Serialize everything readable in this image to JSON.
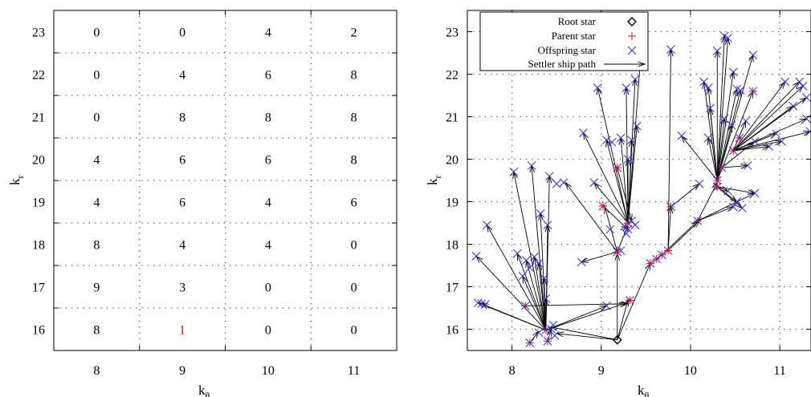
{
  "colors": {
    "axis": "#000000",
    "grid": "#555555",
    "highlight_text": "#ff0000",
    "root": "#000000",
    "parent": "#ff0000",
    "offspring": "#2a2ae0",
    "path": "#000000"
  },
  "chart_data": [
    {
      "type": "table",
      "xlabel": "k",
      "xlabel_sub": "θ",
      "ylabel": "k",
      "ylabel_sub": "r",
      "x_ticks": [
        "8",
        "9",
        "10",
        "11"
      ],
      "y_ticks": [
        "23",
        "22",
        "21",
        "20",
        "19",
        "18",
        "17",
        "16"
      ],
      "grid": true,
      "cells": [
        [
          "0",
          "0",
          "4",
          "2"
        ],
        [
          "0",
          "4",
          "6",
          "8"
        ],
        [
          "0",
          "8",
          "8",
          "8"
        ],
        [
          "4",
          "6",
          "6",
          "8"
        ],
        [
          "4",
          "6",
          "4",
          "6"
        ],
        [
          "8",
          "4",
          "4",
          "0"
        ],
        [
          "9",
          "3",
          "0",
          "0"
        ],
        [
          "8",
          "1",
          "0",
          "0"
        ]
      ],
      "highlight_cell": {
        "row": 7,
        "col": 1
      }
    },
    {
      "type": "scatter",
      "xlabel": "k",
      "xlabel_sub": "θ",
      "ylabel": "k",
      "ylabel_sub": "r",
      "xlim": [
        7.5,
        11.35
      ],
      "ylim": [
        15.5,
        23.5
      ],
      "x_ticks": [
        8,
        9,
        10,
        11
      ],
      "y_ticks": [
        16,
        17,
        18,
        19,
        20,
        21,
        22,
        23
      ],
      "grid": true,
      "legend_position": "top-left",
      "legend": [
        {
          "label": "Root star",
          "marker": "diamond"
        },
        {
          "label": "Parent star",
          "marker": "plus"
        },
        {
          "label": "Offspring star",
          "marker": "cross"
        },
        {
          "label": "Settler ship path",
          "marker": "arrow"
        }
      ],
      "root": [
        9.18,
        15.75
      ],
      "parents": [
        [
          8.38,
          15.98
        ],
        [
          9.18,
          17.82
        ],
        [
          9.3,
          18.5
        ],
        [
          9.78,
          18.88
        ],
        [
          10.48,
          20.2
        ],
        [
          9.02,
          18.9
        ],
        [
          9.18,
          19.8
        ],
        [
          9.75,
          17.85
        ],
        [
          10.08,
          18.55
        ],
        [
          10.3,
          19.5
        ],
        [
          9.32,
          16.68
        ],
        [
          8.2,
          15.68
        ],
        [
          8.4,
          15.72
        ],
        [
          8.15,
          16.55
        ],
        [
          10.7,
          21.6
        ],
        [
          10.55,
          20.5
        ],
        [
          10.35,
          19.8
        ],
        [
          10.3,
          19.35
        ],
        [
          9.55,
          17.55
        ],
        [
          9.62,
          17.65
        ],
        [
          9.68,
          17.75
        ]
      ],
      "offspring": [
        [
          7.6,
          17.72
        ],
        [
          7.62,
          16.62
        ],
        [
          7.66,
          16.6
        ],
        [
          7.7,
          16.58
        ],
        [
          7.72,
          18.45
        ],
        [
          8.02,
          19.7
        ],
        [
          8.06,
          17.78
        ],
        [
          8.12,
          17.25
        ],
        [
          8.16,
          17.62
        ],
        [
          8.2,
          17.45
        ],
        [
          8.22,
          19.85
        ],
        [
          8.25,
          17.7
        ],
        [
          8.3,
          17.55
        ],
        [
          8.32,
          18.72
        ],
        [
          8.36,
          17.2
        ],
        [
          8.38,
          16.72
        ],
        [
          8.4,
          18.45
        ],
        [
          8.42,
          19.6
        ],
        [
          8.3,
          15.92
        ],
        [
          8.44,
          16.0
        ],
        [
          8.48,
          15.85
        ],
        [
          8.46,
          16.1
        ],
        [
          8.58,
          19.45
        ],
        [
          8.78,
          17.58
        ],
        [
          8.8,
          20.62
        ],
        [
          8.92,
          19.45
        ],
        [
          8.96,
          21.68
        ],
        [
          9.06,
          20.45
        ],
        [
          9.12,
          20.4
        ],
        [
          9.22,
          20.5
        ],
        [
          9.28,
          21.68
        ],
        [
          9.34,
          20.45
        ],
        [
          9.38,
          21.88
        ],
        [
          9.44,
          22.35
        ],
        [
          9.4,
          20.78
        ],
        [
          9.26,
          18.42
        ],
        [
          9.3,
          18.35
        ],
        [
          9.34,
          18.55
        ],
        [
          9.38,
          18.45
        ],
        [
          9.28,
          18.25
        ],
        [
          9.3,
          20.0
        ],
        [
          9.06,
          16.55
        ],
        [
          9.22,
          17.85
        ],
        [
          9.78,
          22.58
        ],
        [
          9.9,
          20.55
        ],
        [
          10.15,
          21.82
        ],
        [
          10.2,
          21.68
        ],
        [
          10.2,
          20.5
        ],
        [
          10.22,
          21.2
        ],
        [
          10.3,
          22.55
        ],
        [
          10.38,
          22.9
        ],
        [
          10.42,
          22.85
        ],
        [
          10.38,
          20.95
        ],
        [
          10.46,
          20.8
        ],
        [
          10.48,
          22.05
        ],
        [
          10.52,
          21.65
        ],
        [
          10.56,
          21.62
        ],
        [
          10.62,
          20.9
        ],
        [
          10.7,
          22.45
        ],
        [
          10.72,
          20.42
        ],
        [
          10.88,
          20.3
        ],
        [
          10.96,
          20.6
        ],
        [
          11.06,
          21.82
        ],
        [
          11.15,
          21.25
        ],
        [
          11.22,
          21.82
        ],
        [
          11.26,
          21.72
        ],
        [
          11.3,
          21.45
        ],
        [
          11.3,
          20.95
        ],
        [
          11.34,
          20.65
        ],
        [
          11.02,
          20.42
        ],
        [
          10.64,
          19.85
        ],
        [
          10.52,
          19.0
        ],
        [
          10.58,
          18.85
        ],
        [
          10.48,
          18.88
        ],
        [
          10.42,
          19.25
        ],
        [
          10.72,
          19.2
        ],
        [
          9.1,
          18.35
        ],
        [
          8.5,
          19.42
        ],
        [
          9.78,
          18.88
        ],
        [
          10.1,
          19.42
        ]
      ],
      "paths": [
        [
          9.18,
          15.75,
          8.44,
          16.05
        ],
        [
          9.18,
          15.75,
          9.3,
          16.7
        ],
        [
          9.18,
          15.75,
          8.5,
          15.9
        ],
        [
          9.18,
          15.75,
          9.18,
          17.78
        ],
        [
          8.38,
          15.98,
          7.62,
          16.62
        ],
        [
          8.38,
          15.98,
          7.66,
          16.6
        ],
        [
          8.38,
          15.98,
          7.6,
          17.72
        ],
        [
          8.38,
          15.98,
          7.72,
          18.45
        ],
        [
          8.38,
          15.98,
          8.02,
          19.7
        ],
        [
          8.38,
          15.98,
          8.22,
          19.85
        ],
        [
          8.38,
          15.98,
          8.06,
          17.78
        ],
        [
          8.38,
          15.98,
          8.12,
          17.25
        ],
        [
          8.38,
          15.98,
          8.16,
          17.62
        ],
        [
          8.38,
          15.98,
          8.25,
          17.7
        ],
        [
          8.38,
          15.98,
          8.3,
          17.55
        ],
        [
          8.38,
          15.98,
          8.32,
          18.72
        ],
        [
          8.38,
          15.98,
          8.36,
          17.2
        ],
        [
          8.38,
          15.98,
          8.4,
          18.45
        ],
        [
          8.38,
          15.98,
          8.42,
          19.6
        ],
        [
          8.38,
          15.98,
          8.38,
          16.72
        ],
        [
          8.38,
          15.98,
          9.06,
          16.55
        ],
        [
          8.38,
          15.98,
          9.28,
          16.62
        ],
        [
          8.15,
          16.55,
          9.3,
          16.6
        ],
        [
          8.2,
          15.68,
          8.3,
          15.95
        ],
        [
          8.4,
          15.72,
          8.44,
          16.0
        ],
        [
          9.18,
          17.82,
          8.78,
          17.58
        ],
        [
          9.18,
          17.82,
          9.3,
          18.45
        ],
        [
          9.18,
          17.82,
          8.6,
          19.45
        ],
        [
          9.18,
          17.82,
          9.04,
          18.88
        ],
        [
          9.3,
          18.5,
          8.8,
          20.62
        ],
        [
          9.3,
          18.5,
          8.92,
          19.45
        ],
        [
          9.3,
          18.5,
          8.96,
          21.68
        ],
        [
          9.3,
          18.5,
          9.06,
          20.45
        ],
        [
          9.3,
          18.5,
          9.22,
          20.5
        ],
        [
          9.3,
          18.5,
          9.28,
          21.68
        ],
        [
          9.3,
          18.5,
          9.34,
          20.45
        ],
        [
          9.3,
          18.5,
          9.38,
          21.88
        ],
        [
          9.3,
          18.5,
          9.44,
          22.35
        ],
        [
          9.3,
          18.5,
          9.4,
          20.78
        ],
        [
          9.3,
          18.5,
          9.3,
          20.0
        ],
        [
          9.02,
          18.9,
          9.3,
          18.35
        ],
        [
          9.18,
          19.8,
          9.34,
          18.55
        ],
        [
          9.75,
          17.85,
          9.78,
          22.58
        ],
        [
          9.75,
          17.85,
          9.78,
          18.88
        ],
        [
          9.75,
          17.85,
          10.1,
          18.55
        ],
        [
          9.18,
          15.75,
          9.55,
          17.55
        ],
        [
          10.08,
          18.55,
          10.3,
          19.45
        ],
        [
          10.08,
          18.55,
          10.72,
          19.2
        ],
        [
          10.08,
          18.55,
          10.48,
          18.88
        ],
        [
          10.3,
          19.5,
          10.15,
          21.82
        ],
        [
          10.3,
          19.5,
          10.2,
          21.68
        ],
        [
          10.3,
          19.5,
          10.2,
          20.5
        ],
        [
          10.3,
          19.5,
          10.22,
          21.2
        ],
        [
          10.3,
          19.5,
          10.3,
          22.55
        ],
        [
          10.3,
          19.5,
          10.38,
          22.9
        ],
        [
          10.3,
          19.5,
          10.42,
          22.85
        ],
        [
          10.3,
          19.5,
          10.38,
          20.95
        ],
        [
          10.3,
          19.5,
          10.46,
          20.8
        ],
        [
          10.3,
          19.5,
          10.48,
          22.05
        ],
        [
          10.3,
          19.5,
          10.52,
          21.65
        ],
        [
          10.3,
          19.5,
          10.56,
          21.62
        ],
        [
          10.3,
          19.5,
          10.7,
          22.45
        ],
        [
          10.3,
          19.5,
          10.7,
          21.6
        ],
        [
          10.3,
          19.5,
          9.9,
          20.55
        ],
        [
          10.48,
          20.2,
          11.06,
          21.82
        ],
        [
          10.48,
          20.2,
          11.15,
          21.25
        ],
        [
          10.48,
          20.2,
          11.22,
          21.82
        ],
        [
          10.48,
          20.2,
          11.26,
          21.72
        ],
        [
          10.48,
          20.2,
          11.3,
          21.45
        ],
        [
          10.48,
          20.2,
          11.3,
          20.95
        ],
        [
          10.48,
          20.2,
          11.34,
          20.65
        ],
        [
          10.48,
          20.2,
          11.02,
          20.42
        ],
        [
          10.48,
          20.2,
          10.96,
          20.6
        ],
        [
          10.48,
          20.2,
          10.88,
          20.3
        ],
        [
          10.48,
          20.2,
          10.62,
          20.9
        ],
        [
          10.35,
          19.8,
          10.72,
          20.42
        ],
        [
          10.35,
          19.8,
          10.64,
          19.85
        ],
        [
          10.3,
          19.35,
          10.52,
          19.0
        ],
        [
          10.3,
          19.35,
          10.58,
          18.85
        ],
        [
          10.3,
          19.35,
          10.42,
          19.25
        ],
        [
          10.3,
          19.35,
          10.72,
          19.2
        ],
        [
          9.68,
          17.75,
          10.08,
          18.55
        ],
        [
          9.78,
          18.88,
          10.1,
          19.42
        ]
      ]
    }
  ]
}
